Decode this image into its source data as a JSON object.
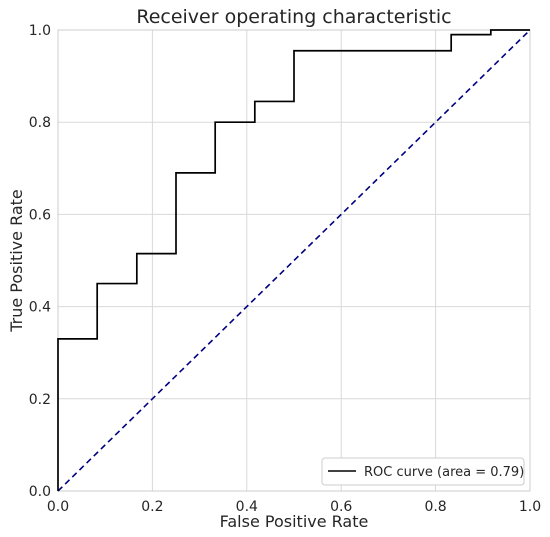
{
  "chart_data": {
    "type": "line",
    "title": "Receiver operating characteristic",
    "xlabel": "False Positive Rate",
    "ylabel": "True Positive Rate",
    "xlim": [
      0.0,
      1.0
    ],
    "ylim": [
      0.0,
      1.0
    ],
    "xticks": [
      "0.0",
      "0.2",
      "0.4",
      "0.6",
      "0.8",
      "1.0"
    ],
    "yticks": [
      "0.0",
      "0.2",
      "0.4",
      "0.6",
      "0.8",
      "1.0"
    ],
    "grid": true,
    "legend_position": "lower-right",
    "series": [
      {
        "name": "ROC curve (area = 0.79)",
        "style": "solid",
        "color": "#000000",
        "x": [
          0.0,
          0.0,
          0.083,
          0.083,
          0.167,
          0.167,
          0.25,
          0.25,
          0.333,
          0.333,
          0.417,
          0.417,
          0.5,
          0.5,
          0.833,
          0.833,
          0.917,
          0.917,
          1.0
        ],
        "y": [
          0.0,
          0.33,
          0.33,
          0.45,
          0.45,
          0.515,
          0.515,
          0.69,
          0.69,
          0.8,
          0.8,
          0.845,
          0.845,
          0.955,
          0.955,
          0.99,
          0.99,
          1.0,
          1.0
        ]
      },
      {
        "style": "dashed",
        "color": "#000080",
        "x": [
          0.0,
          1.0
        ],
        "y": [
          0.0,
          1.0
        ]
      }
    ]
  }
}
